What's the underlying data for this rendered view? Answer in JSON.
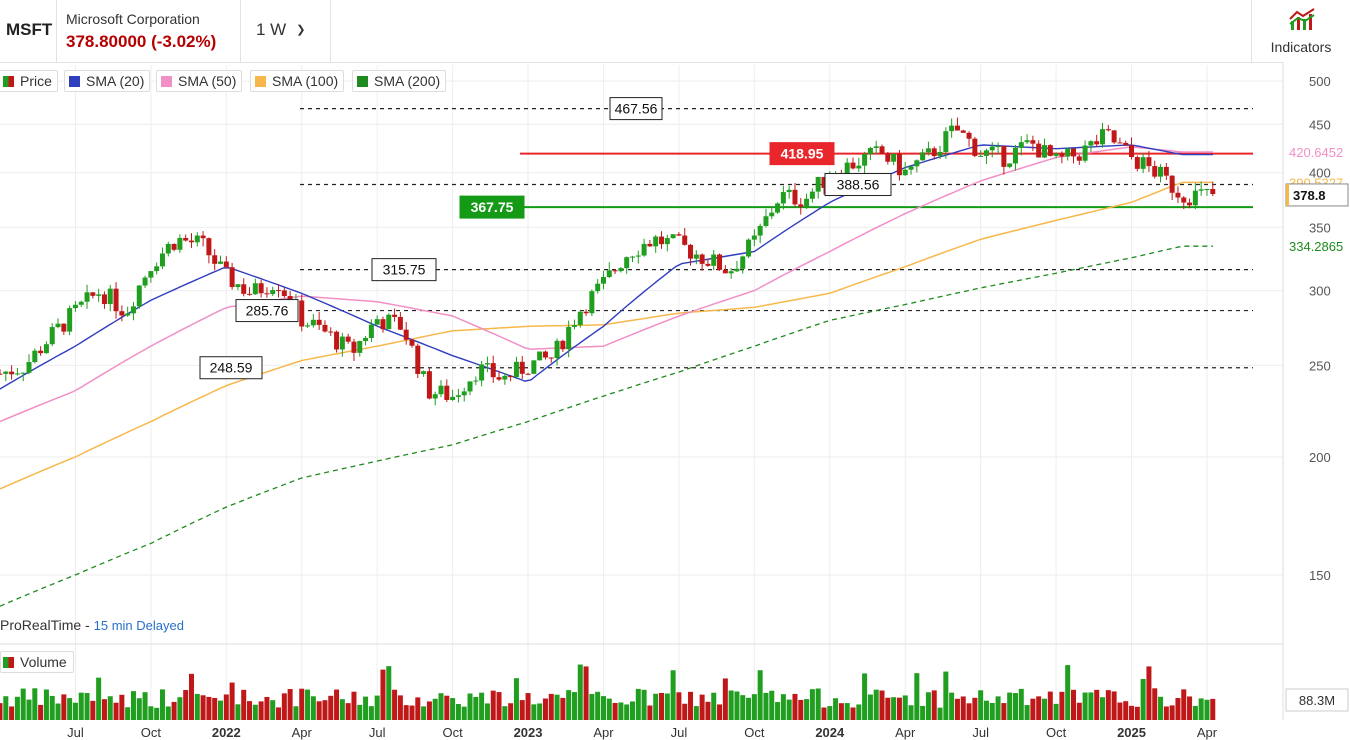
{
  "header": {
    "symbol": "MSFT",
    "company": "Microsoft Corporation",
    "price_change": "378.80000 (-3.02%)",
    "timeframe": "1 W",
    "indicators_label": "Indicators"
  },
  "legend": [
    {
      "label": "Price",
      "color": "#2e9e2e"
    },
    {
      "label": "SMA (20)",
      "color": "#2f3dbf"
    },
    {
      "label": "SMA (50)",
      "color": "#f28fc5"
    },
    {
      "label": "SMA (100)",
      "color": "#f7b84b"
    },
    {
      "label": "SMA (200)",
      "color": "#1f8a1f"
    }
  ],
  "footer": {
    "provider": "ProRealTime -",
    "delay": "15 min Delayed",
    "volume_label": "Volume",
    "volume_value": "88.3M"
  },
  "chart_data": {
    "type": "line",
    "series_type": "candlestick",
    "symbol": "MSFT",
    "timeframe": "weekly",
    "log_scale": true,
    "ylim": [
      128,
      520
    ],
    "y_ticks": [
      150,
      200,
      250,
      300,
      350,
      400,
      450,
      500
    ],
    "x_ticks": [
      "Jul",
      "Oct",
      "2022",
      "Apr",
      "Jul",
      "Oct",
      "2023",
      "Apr",
      "Jul",
      "Oct",
      "2024",
      "Apr",
      "Jul",
      "Oct",
      "2025",
      "Apr"
    ],
    "close_path": [
      {
        "x": "2021-04",
        "y": 245
      },
      {
        "x": "2021-05",
        "y": 250
      },
      {
        "x": "2021-06",
        "y": 268
      },
      {
        "x": "2021-07",
        "y": 285
      },
      {
        "x": "2021-08",
        "y": 300
      },
      {
        "x": "2021-09",
        "y": 285
      },
      {
        "x": "2021-10",
        "y": 320
      },
      {
        "x": "2021-11",
        "y": 340
      },
      {
        "x": "2021-12",
        "y": 336
      },
      {
        "x": "2022-01",
        "y": 310
      },
      {
        "x": "2022-02",
        "y": 298
      },
      {
        "x": "2022-03",
        "y": 308
      },
      {
        "x": "2022-04",
        "y": 280
      },
      {
        "x": "2022-05",
        "y": 270
      },
      {
        "x": "2022-06",
        "y": 258
      },
      {
        "x": "2022-07",
        "y": 280
      },
      {
        "x": "2022-08",
        "y": 275
      },
      {
        "x": "2022-09",
        "y": 235
      },
      {
        "x": "2022-10",
        "y": 232
      },
      {
        "x": "2022-11",
        "y": 248
      },
      {
        "x": "2022-12",
        "y": 242
      },
      {
        "x": "2023-01",
        "y": 250
      },
      {
        "x": "2023-02",
        "y": 255
      },
      {
        "x": "2023-03",
        "y": 285
      },
      {
        "x": "2023-04",
        "y": 305
      },
      {
        "x": "2023-05",
        "y": 330
      },
      {
        "x": "2023-06",
        "y": 340
      },
      {
        "x": "2023-07",
        "y": 335
      },
      {
        "x": "2023-08",
        "y": 325
      },
      {
        "x": "2023-09",
        "y": 315
      },
      {
        "x": "2023-10",
        "y": 338
      },
      {
        "x": "2023-11",
        "y": 378
      },
      {
        "x": "2023-12",
        "y": 375
      },
      {
        "x": "2024-01",
        "y": 398
      },
      {
        "x": "2024-02",
        "y": 410
      },
      {
        "x": "2024-03",
        "y": 420
      },
      {
        "x": "2024-04",
        "y": 400
      },
      {
        "x": "2024-05",
        "y": 418
      },
      {
        "x": "2024-06",
        "y": 445
      },
      {
        "x": "2024-07",
        "y": 420
      },
      {
        "x": "2024-08",
        "y": 415
      },
      {
        "x": "2024-09",
        "y": 430
      },
      {
        "x": "2024-10",
        "y": 410
      },
      {
        "x": "2024-11",
        "y": 420
      },
      {
        "x": "2024-12",
        "y": 438
      },
      {
        "x": "2025-01",
        "y": 415
      },
      {
        "x": "2025-02",
        "y": 400
      },
      {
        "x": "2025-03",
        "y": 378.8
      }
    ],
    "sma_20": [
      {
        "x": "2021-04",
        "y": 236
      },
      {
        "x": "2021-07",
        "y": 262
      },
      {
        "x": "2021-10",
        "y": 293
      },
      {
        "x": "2022-01",
        "y": 318
      },
      {
        "x": "2022-04",
        "y": 298
      },
      {
        "x": "2022-07",
        "y": 275
      },
      {
        "x": "2022-10",
        "y": 256
      },
      {
        "x": "2023-01",
        "y": 240
      },
      {
        "x": "2023-04",
        "y": 275
      },
      {
        "x": "2023-07",
        "y": 320
      },
      {
        "x": "2023-10",
        "y": 330
      },
      {
        "x": "2024-01",
        "y": 372
      },
      {
        "x": "2024-04",
        "y": 405
      },
      {
        "x": "2024-07",
        "y": 428
      },
      {
        "x": "2024-10",
        "y": 424
      },
      {
        "x": "2025-01",
        "y": 428
      },
      {
        "x": "2025-03",
        "y": 418
      }
    ],
    "sma_50": [
      {
        "x": "2021-04",
        "y": 218
      },
      {
        "x": "2021-07",
        "y": 235
      },
      {
        "x": "2021-10",
        "y": 262
      },
      {
        "x": "2022-01",
        "y": 288
      },
      {
        "x": "2022-04",
        "y": 296
      },
      {
        "x": "2022-07",
        "y": 292
      },
      {
        "x": "2022-10",
        "y": 282
      },
      {
        "x": "2023-01",
        "y": 260
      },
      {
        "x": "2023-04",
        "y": 262
      },
      {
        "x": "2023-07",
        "y": 282
      },
      {
        "x": "2023-10",
        "y": 300
      },
      {
        "x": "2024-01",
        "y": 330
      },
      {
        "x": "2024-04",
        "y": 362
      },
      {
        "x": "2024-07",
        "y": 392
      },
      {
        "x": "2024-10",
        "y": 415
      },
      {
        "x": "2025-01",
        "y": 426
      },
      {
        "x": "2025-03",
        "y": 420.6452
      }
    ],
    "sma_100": [
      {
        "x": "2021-04",
        "y": 185
      },
      {
        "x": "2021-07",
        "y": 200
      },
      {
        "x": "2021-10",
        "y": 218
      },
      {
        "x": "2022-01",
        "y": 238
      },
      {
        "x": "2022-04",
        "y": 253
      },
      {
        "x": "2022-07",
        "y": 262
      },
      {
        "x": "2022-10",
        "y": 272
      },
      {
        "x": "2023-01",
        "y": 275
      },
      {
        "x": "2023-04",
        "y": 276
      },
      {
        "x": "2023-07",
        "y": 284
      },
      {
        "x": "2023-10",
        "y": 288
      },
      {
        "x": "2024-01",
        "y": 298
      },
      {
        "x": "2024-04",
        "y": 318
      },
      {
        "x": "2024-07",
        "y": 340
      },
      {
        "x": "2024-10",
        "y": 356
      },
      {
        "x": "2025-01",
        "y": 372
      },
      {
        "x": "2025-03",
        "y": 390.5327
      }
    ],
    "sma_200": [
      {
        "x": "2021-04",
        "y": 139
      },
      {
        "x": "2021-07",
        "y": 150
      },
      {
        "x": "2021-10",
        "y": 162
      },
      {
        "x": "2022-01",
        "y": 177
      },
      {
        "x": "2022-04",
        "y": 190
      },
      {
        "x": "2022-07",
        "y": 198
      },
      {
        "x": "2022-10",
        "y": 206
      },
      {
        "x": "2023-01",
        "y": 218
      },
      {
        "x": "2023-04",
        "y": 232
      },
      {
        "x": "2023-07",
        "y": 246
      },
      {
        "x": "2023-10",
        "y": 262
      },
      {
        "x": "2024-01",
        "y": 279
      },
      {
        "x": "2024-04",
        "y": 290
      },
      {
        "x": "2024-07",
        "y": 302
      },
      {
        "x": "2024-10",
        "y": 313
      },
      {
        "x": "2025-01",
        "y": 325
      },
      {
        "x": "2025-03",
        "y": 334.2865
      }
    ],
    "levels": [
      {
        "value": 467.56,
        "label": "467.56",
        "style": "dashed",
        "color": "#222222",
        "label_style": "box"
      },
      {
        "value": 418.95,
        "label": "418.95",
        "style": "solid",
        "color": "#e8262b",
        "label_style": "filled"
      },
      {
        "value": 388.56,
        "label": "388.56",
        "style": "dashed",
        "color": "#222222",
        "label_style": "box"
      },
      {
        "value": 367.75,
        "label": "367.75",
        "style": "solid",
        "color": "#159a15",
        "label_style": "filled"
      },
      {
        "value": 315.75,
        "label": "315.75",
        "style": "dashed",
        "color": "#222222",
        "label_style": "box"
      },
      {
        "value": 285.76,
        "label": "285.76",
        "style": "dashed",
        "color": "#222222",
        "label_style": "box"
      },
      {
        "value": 248.59,
        "label": "248.59",
        "style": "dashed",
        "color": "#222222",
        "label_style": "box"
      }
    ],
    "axis_badges": [
      {
        "label": "420.6452",
        "color": "#f28fc5"
      },
      {
        "label": "390.5327",
        "color": "#f7b84b"
      },
      {
        "label": "378.8",
        "color": "#f7b84b"
      },
      {
        "label": "334.2865",
        "color": "#1f8a1f"
      }
    ],
    "last_price": 378.8,
    "volume_last": "88.3M",
    "up_color": "#1f9e1f",
    "down_color": "#c01818"
  }
}
